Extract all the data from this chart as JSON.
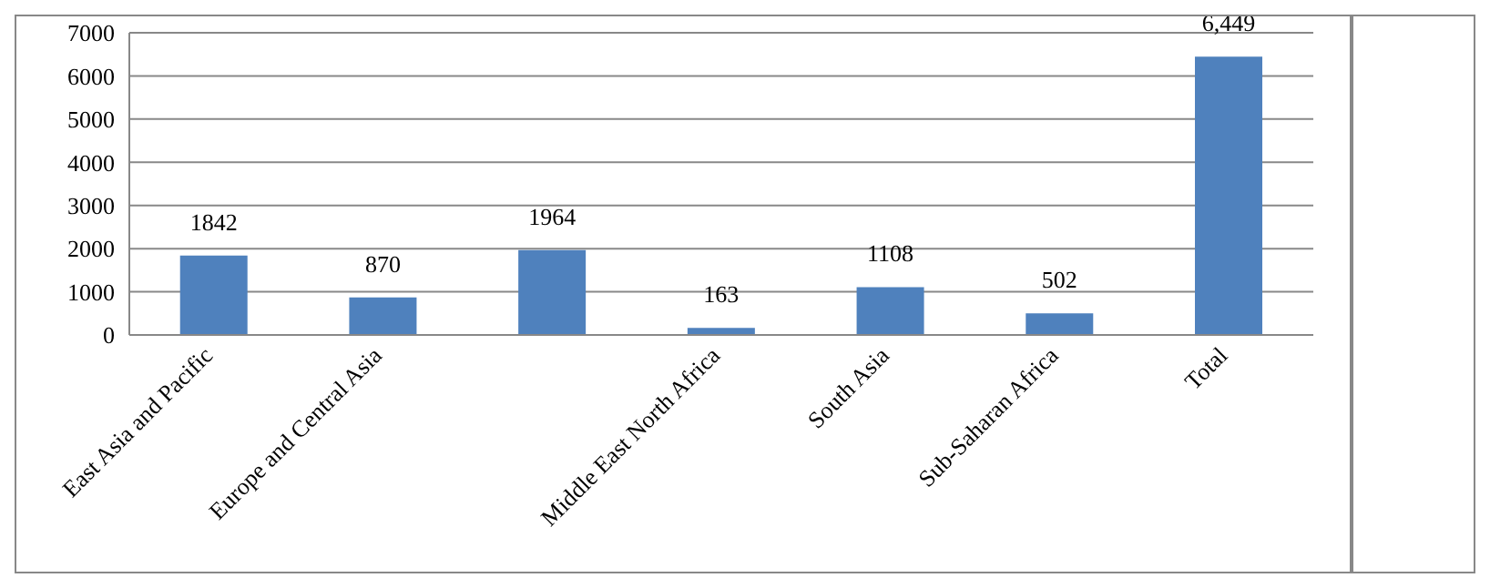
{
  "chart_data": {
    "type": "bar",
    "categories": [
      "East Asia and Pacific",
      "Europe and Central Asia",
      null,
      "Middle East North Africa",
      "South Asia",
      "Sub-Saharan Africa",
      "Total"
    ],
    "values": [
      1842,
      870,
      1964,
      163,
      1108,
      502,
      6449
    ],
    "value_labels": [
      "1842",
      "870",
      "1964",
      "163",
      "1108",
      "502",
      "6,449"
    ],
    "color": "#4f81bd",
    "ylim": [
      0,
      7000
    ],
    "yticks": [
      0,
      1000,
      2000,
      3000,
      4000,
      5000,
      6000,
      7000
    ],
    "grid": "y"
  }
}
